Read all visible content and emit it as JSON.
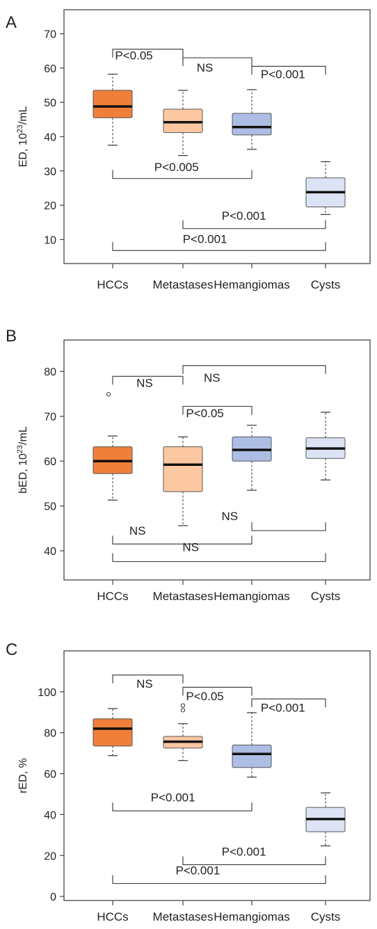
{
  "chart_data": [
    {
      "type": "box",
      "panel_letter": "A",
      "ylabel_main": "ED, 10",
      "ylabel_sup": "23",
      "ylabel_unit": "/mL",
      "ylim": [
        3,
        77
      ],
      "yticks": [
        10,
        20,
        30,
        40,
        50,
        60,
        70
      ],
      "categories": [
        "HCCs",
        "Metastases",
        "Hemangiomas",
        "Cysts"
      ],
      "colors": [
        "#f07f3a",
        "#fcc8a2",
        "#adbde4",
        "#dce3f4"
      ],
      "boxes": [
        {
          "whisker_low": 37.5,
          "q1": 45.5,
          "median": 48.8,
          "q3": 53.5,
          "whisker_high": 58.2,
          "outliers": []
        },
        {
          "whisker_low": 34.5,
          "q1": 41.2,
          "median": 44.2,
          "q3": 48.0,
          "whisker_high": 53.5,
          "outliers": []
        },
        {
          "whisker_low": 36.3,
          "q1": 40.5,
          "median": 42.8,
          "q3": 46.8,
          "whisker_high": 53.7,
          "outliers": []
        },
        {
          "whisker_low": 17.3,
          "q1": 19.5,
          "median": 23.8,
          "q3": 28.0,
          "whisker_high": 32.7,
          "outliers": []
        }
      ],
      "comparisons": [
        {
          "from": 0,
          "to": 1,
          "y": 65.5,
          "dir": "up",
          "label": "P<0.05",
          "label_y": 62.5,
          "label_x": 1.3
        },
        {
          "from": 1,
          "to": 2,
          "y": 63.0,
          "dir": "up",
          "label": "NS",
          "label_y": 59.0,
          "label_x": 2.3
        },
        {
          "from": 2,
          "to": 3,
          "y": 60.5,
          "dir": "up",
          "label": "P<0.001",
          "label_y": 57.0,
          "label_x": 3.4
        },
        {
          "from": 0,
          "to": 2,
          "y": 27.8,
          "dir": "down",
          "label": "P<0.005",
          "label_y": 30.0,
          "label_x": 1.9
        },
        {
          "from": 1,
          "to": 3,
          "y": 13.2,
          "dir": "down",
          "label": "P<0.001",
          "label_y": 15.8,
          "label_x": 2.85
        },
        {
          "from": 0,
          "to": 3,
          "y": 6.8,
          "dir": "down",
          "label": "P<0.001",
          "label_y": 9.0,
          "label_x": 2.3
        }
      ]
    },
    {
      "type": "box",
      "panel_letter": "B",
      "ylabel_main": "bED, 10",
      "ylabel_sup": "23",
      "ylabel_unit": "/mL",
      "ylim": [
        33.5,
        87
      ],
      "yticks": [
        40,
        50,
        60,
        70,
        80
      ],
      "categories": [
        "HCCs",
        "Metastases",
        "Hemangiomas",
        "Cysts"
      ],
      "colors": [
        "#f07f3a",
        "#fcc8a2",
        "#adbde4",
        "#dce3f4"
      ],
      "boxes": [
        {
          "whisker_low": 51.3,
          "q1": 57.2,
          "median": 60.0,
          "q3": 63.2,
          "whisker_high": 65.6,
          "outliers": [
            74.9
          ]
        },
        {
          "whisker_low": 45.6,
          "q1": 53.2,
          "median": 59.2,
          "q3": 63.2,
          "whisker_high": 65.4,
          "outliers": []
        },
        {
          "whisker_low": 53.5,
          "q1": 60.0,
          "median": 62.5,
          "q3": 65.4,
          "whisker_high": 68.0,
          "outliers": []
        },
        {
          "whisker_low": 55.8,
          "q1": 60.6,
          "median": 62.8,
          "q3": 65.2,
          "whisker_high": 70.9,
          "outliers": []
        }
      ],
      "comparisons": [
        {
          "from": 0,
          "to": 1,
          "y": 78.9,
          "dir": "up",
          "label": "NS",
          "label_y": 76.5,
          "label_x": 1.45
        },
        {
          "from": 1,
          "to": 3,
          "y": 81.3,
          "dir": "up",
          "label": "NS",
          "label_y": 77.7,
          "label_x": 2.4
        },
        {
          "from": 1,
          "to": 2,
          "y": 72.2,
          "dir": "up",
          "label": "P<0.05",
          "label_y": 69.8,
          "label_x": 2.3
        },
        {
          "from": 2,
          "to": 3,
          "y": 44.5,
          "dir": "down",
          "label": "NS",
          "label_y": 46.8,
          "label_x": 2.65
        },
        {
          "from": 0,
          "to": 2,
          "y": 41.5,
          "dir": "down",
          "label": "NS",
          "label_y": 43.6,
          "label_x": 1.35
        },
        {
          "from": 0,
          "to": 3,
          "y": 37.6,
          "dir": "down",
          "label": "NS",
          "label_y": 39.9,
          "label_x": 2.1
        }
      ]
    },
    {
      "type": "box",
      "panel_letter": "C",
      "ylabel_main": "rED, %",
      "ylim": [
        -2,
        120
      ],
      "yticks": [
        0,
        20,
        40,
        60,
        80,
        100
      ],
      "categories": [
        "HCCs",
        "Metastases",
        "Hemangiomas",
        "Cysts"
      ],
      "colors": [
        "#f07f3a",
        "#fcc8a2",
        "#adbde4",
        "#dce3f4"
      ],
      "boxes": [
        {
          "whisker_low": 68.8,
          "q1": 73.5,
          "median": 82.0,
          "q3": 86.8,
          "whisker_high": 91.8,
          "outliers": []
        },
        {
          "whisker_low": 66.4,
          "q1": 72.5,
          "median": 75.6,
          "q3": 78.2,
          "whisker_high": 84.4,
          "outliers": [
            91.0,
            93.3
          ]
        },
        {
          "whisker_low": 58.3,
          "q1": 63.0,
          "median": 69.6,
          "q3": 74.0,
          "whisker_high": 89.8,
          "outliers": []
        },
        {
          "whisker_low": 24.7,
          "q1": 31.6,
          "median": 37.8,
          "q3": 43.5,
          "whisker_high": 50.6,
          "outliers": []
        }
      ],
      "comparisons": [
        {
          "from": 0,
          "to": 1,
          "y": 108.2,
          "dir": "up",
          "label": "NS",
          "label_y": 102.0,
          "label_x": 1.45
        },
        {
          "from": 1,
          "to": 2,
          "y": 102.2,
          "dir": "up",
          "label": "P<0.05",
          "label_y": 95.8,
          "label_x": 2.3
        },
        {
          "from": 2,
          "to": 3,
          "y": 96.5,
          "dir": "up",
          "label": "P<0.001",
          "label_y": 90.3,
          "label_x": 3.4
        },
        {
          "from": 0,
          "to": 2,
          "y": 41.8,
          "dir": "down",
          "label": "P<0.001",
          "label_y": 46.5,
          "label_x": 1.85
        },
        {
          "from": 1,
          "to": 3,
          "y": 15.5,
          "dir": "down",
          "label": "P<0.001",
          "label_y": 20.0,
          "label_x": 2.85
        },
        {
          "from": 0,
          "to": 3,
          "y": 6.3,
          "dir": "down",
          "label": "P<0.001",
          "label_y": 10.8,
          "label_x": 2.2
        }
      ]
    }
  ]
}
